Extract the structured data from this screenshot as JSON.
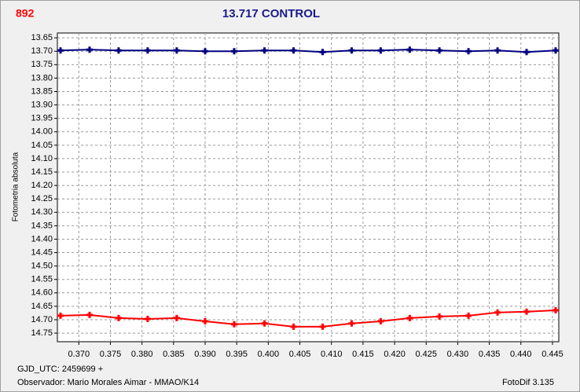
{
  "header": {
    "code": "892"
  },
  "chart_data": {
    "type": "line",
    "title": "13.717 CONTROL",
    "ylabel": "Fotometria absoluta",
    "x": [
      0.3671,
      0.3717,
      0.3763,
      0.3809,
      0.3855,
      0.39,
      0.3946,
      0.3994,
      0.404,
      0.4086,
      0.4132,
      0.4178,
      0.4224,
      0.4271,
      0.4317,
      0.4363,
      0.4409,
      0.4455
    ],
    "series": [
      {
        "color": "#000080",
        "values": [
          13.697,
          13.694,
          13.697,
          13.697,
          13.697,
          13.7,
          13.7,
          13.697,
          13.697,
          13.703,
          13.697,
          13.697,
          13.694,
          13.697,
          13.7,
          13.697,
          13.703,
          13.697
        ]
      },
      {
        "color": "#ff0000",
        "values": [
          14.685,
          14.682,
          14.694,
          14.697,
          14.694,
          14.706,
          14.717,
          14.714,
          14.726,
          14.726,
          14.714,
          14.706,
          14.694,
          14.688,
          14.685,
          14.673,
          14.67,
          14.665
        ]
      }
    ],
    "xlim": [
      0.3666,
      0.446
    ],
    "ylim": [
      13.632,
      14.782
    ],
    "y_inverted": true,
    "grid": true,
    "xticks": [
      {
        "value": 0.37,
        "label": "0.370"
      },
      0.375,
      {
        "value": 0.38,
        "label": "0.380"
      },
      0.385,
      {
        "value": 0.39,
        "label": "0.390"
      },
      0.395,
      {
        "value": 0.4,
        "label": "0.400"
      },
      0.405,
      {
        "value": 0.41,
        "label": "0.410"
      },
      0.415,
      {
        "value": 0.42,
        "label": "0.420"
      },
      0.425,
      {
        "value": 0.43,
        "label": "0.430"
      },
      0.435,
      {
        "value": 0.44,
        "label": "0.440"
      },
      0.445
    ],
    "yticks": [
      13.65,
      {
        "value": 13.7,
        "label": "13.70"
      },
      13.75,
      {
        "value": 13.8,
        "label": "13.80"
      },
      13.85,
      {
        "value": 13.9,
        "label": "13.90"
      },
      13.95,
      {
        "value": 14.0,
        "label": "14.00"
      },
      14.05,
      {
        "value": 14.1,
        "label": "14.10"
      },
      14.15,
      {
        "value": 14.2,
        "label": "14.20"
      },
      14.25,
      {
        "value": 14.3,
        "label": "14.30"
      },
      14.35,
      {
        "value": 14.4,
        "label": "14.40"
      },
      14.45,
      {
        "value": 14.5,
        "label": "14.50"
      },
      14.55,
      {
        "value": 14.6,
        "label": "14.60"
      },
      14.65,
      {
        "value": 14.7,
        "label": "14.70"
      },
      14.75
    ]
  },
  "footer": {
    "gjd": "GJD_UTC: 2459699 +",
    "observer": "Observador: Mario Morales Aimar - MMAO/K14",
    "software": "FotoDif 3.135"
  }
}
